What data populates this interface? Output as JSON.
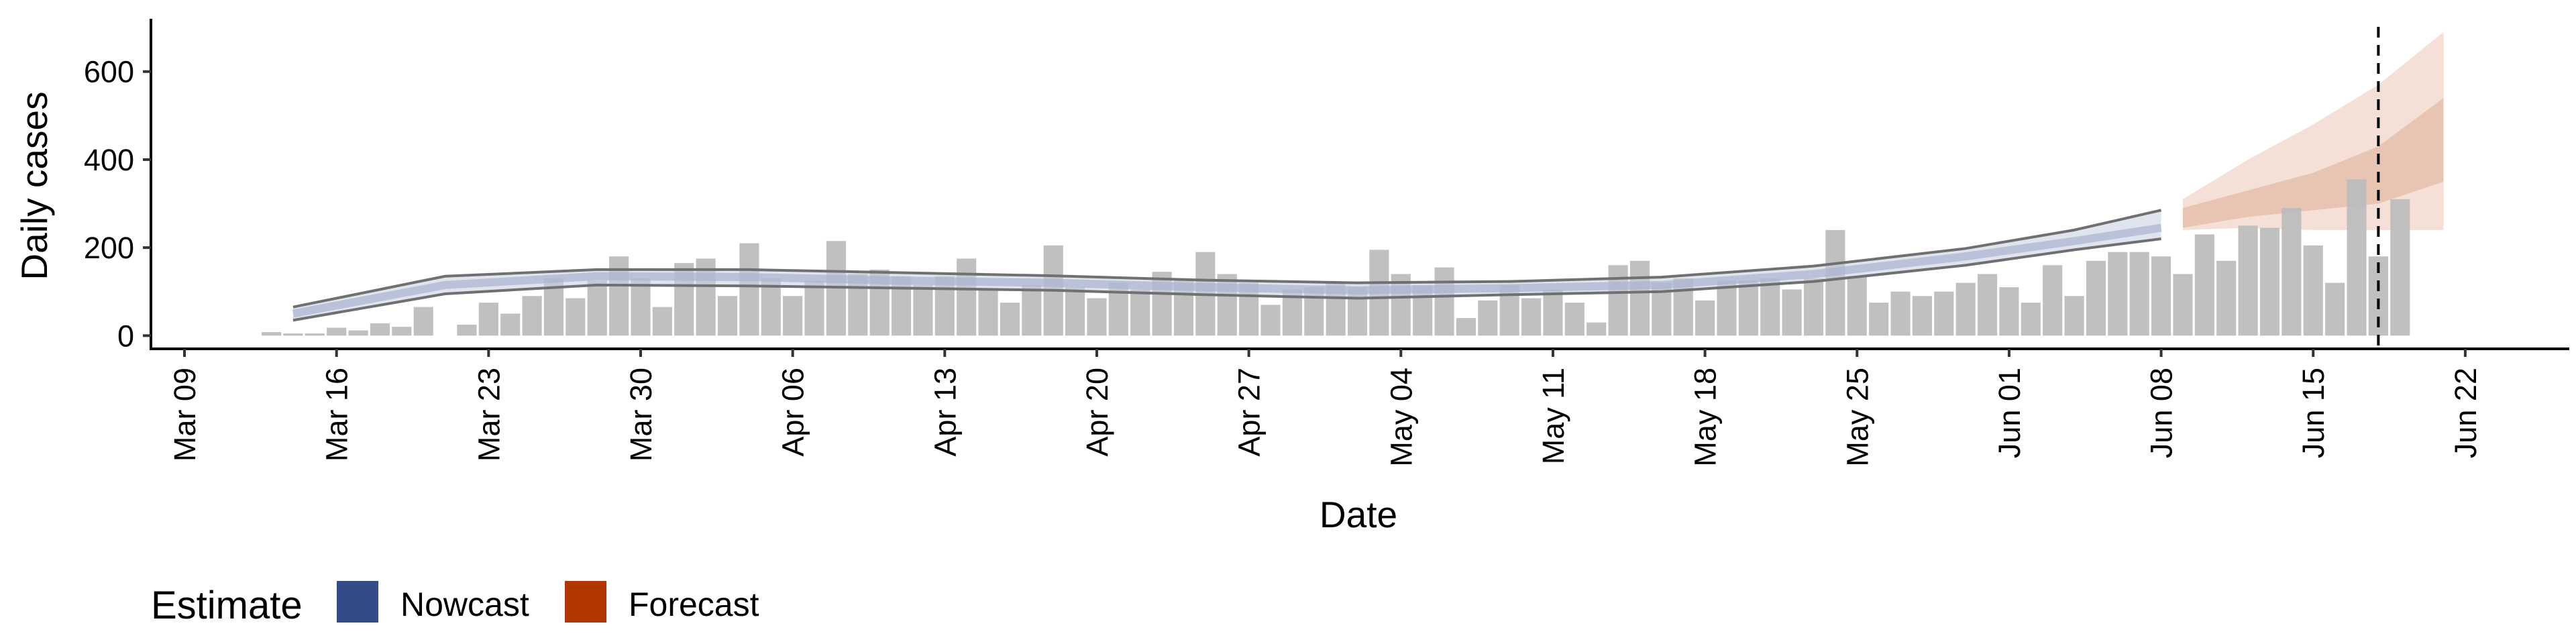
{
  "chart_data": {
    "type": "bar",
    "xlabel": "Date",
    "ylabel": "Daily cases",
    "ylim": [
      -30,
      720
    ],
    "y_ticks": [
      0,
      200,
      400,
      600
    ],
    "x_ticks": [
      "Mar 09",
      "Mar 16",
      "Mar 23",
      "Mar 30",
      "Apr 06",
      "Apr 13",
      "Apr 20",
      "Apr 27",
      "May 04",
      "May 11",
      "May 18",
      "May 25",
      "Jun 01",
      "Jun 08",
      "Jun 15",
      "Jun 22"
    ],
    "start_date": "2020-03-13",
    "daily_cases": [
      8,
      5,
      5,
      18,
      12,
      28,
      20,
      65,
      0,
      25,
      75,
      50,
      90,
      130,
      85,
      125,
      180,
      130,
      65,
      165,
      175,
      90,
      210,
      130,
      90,
      125,
      215,
      140,
      150,
      135,
      115,
      135,
      175,
      105,
      75,
      115,
      205,
      110,
      85,
      120,
      105,
      145,
      125,
      190,
      140,
      120,
      70,
      105,
      110,
      120,
      110,
      195,
      140,
      115,
      155,
      40,
      80,
      115,
      85,
      105,
      75,
      30,
      160,
      170,
      120,
      130,
      80,
      125,
      125,
      130,
      105,
      130,
      240,
      135,
      75,
      100,
      90,
      100,
      120,
      140,
      110,
      75,
      160,
      90,
      170,
      190,
      190,
      180,
      140,
      230,
      170,
      250,
      245,
      290,
      205,
      120,
      355,
      180,
      310
    ],
    "nowcast": {
      "start_date": "2020-03-14",
      "end_date": "2020-06-08",
      "points": [
        {
          "date": "2020-03-14",
          "median": 50,
          "low90": 35,
          "high90": 65
        },
        {
          "date": "2020-03-21",
          "median": 115,
          "low90": 95,
          "high90": 135
        },
        {
          "date": "2020-03-28",
          "median": 135,
          "low90": 115,
          "high90": 150
        },
        {
          "date": "2020-04-04",
          "median": 133,
          "low90": 113,
          "high90": 150
        },
        {
          "date": "2020-04-11",
          "median": 125,
          "low90": 108,
          "high90": 143
        },
        {
          "date": "2020-04-18",
          "median": 120,
          "low90": 103,
          "high90": 136
        },
        {
          "date": "2020-04-25",
          "median": 110,
          "low90": 93,
          "high90": 126
        },
        {
          "date": "2020-05-02",
          "median": 103,
          "low90": 85,
          "high90": 120
        },
        {
          "date": "2020-05-09",
          "median": 108,
          "low90": 93,
          "high90": 123
        },
        {
          "date": "2020-05-16",
          "median": 115,
          "low90": 100,
          "high90": 133
        },
        {
          "date": "2020-05-23",
          "median": 140,
          "low90": 123,
          "high90": 158
        },
        {
          "date": "2020-05-30",
          "median": 180,
          "low90": 160,
          "high90": 198
        },
        {
          "date": "2020-06-04",
          "median": 215,
          "low90": 195,
          "high90": 240
        },
        {
          "date": "2020-06-08",
          "median": 245,
          "low90": 220,
          "high90": 285
        }
      ]
    },
    "forecast": {
      "start_date": "2020-06-09",
      "end_date": "2020-06-21",
      "points": [
        {
          "date": "2020-06-09",
          "low50": 245,
          "high50": 290,
          "low90": 240,
          "high90": 310
        },
        {
          "date": "2020-06-12",
          "low50": 270,
          "high50": 330,
          "low90": 245,
          "high90": 400
        },
        {
          "date": "2020-06-15",
          "low50": 285,
          "high50": 370,
          "low90": 240,
          "high90": 480
        },
        {
          "date": "2020-06-18",
          "low50": 300,
          "high50": 430,
          "low90": 240,
          "high90": 570
        },
        {
          "date": "2020-06-21",
          "low50": 350,
          "high50": 540,
          "low90": 240,
          "high90": 690
        }
      ]
    },
    "vline_date": "2020-06-18",
    "legend": {
      "title": "Estimate",
      "placement": "bottom-left",
      "items": [
        {
          "label": "Nowcast",
          "color": "#344b8a"
        },
        {
          "label": "Forecast",
          "color": "#b23600"
        }
      ]
    },
    "colors": {
      "bars": "#bdbdbd",
      "nowcast_band": "#c5cde2",
      "nowcast_line": "#707070",
      "forecast_outer": "#f4e0d6",
      "forecast_inner": "#e8c4b2",
      "vline": "#000000"
    }
  }
}
